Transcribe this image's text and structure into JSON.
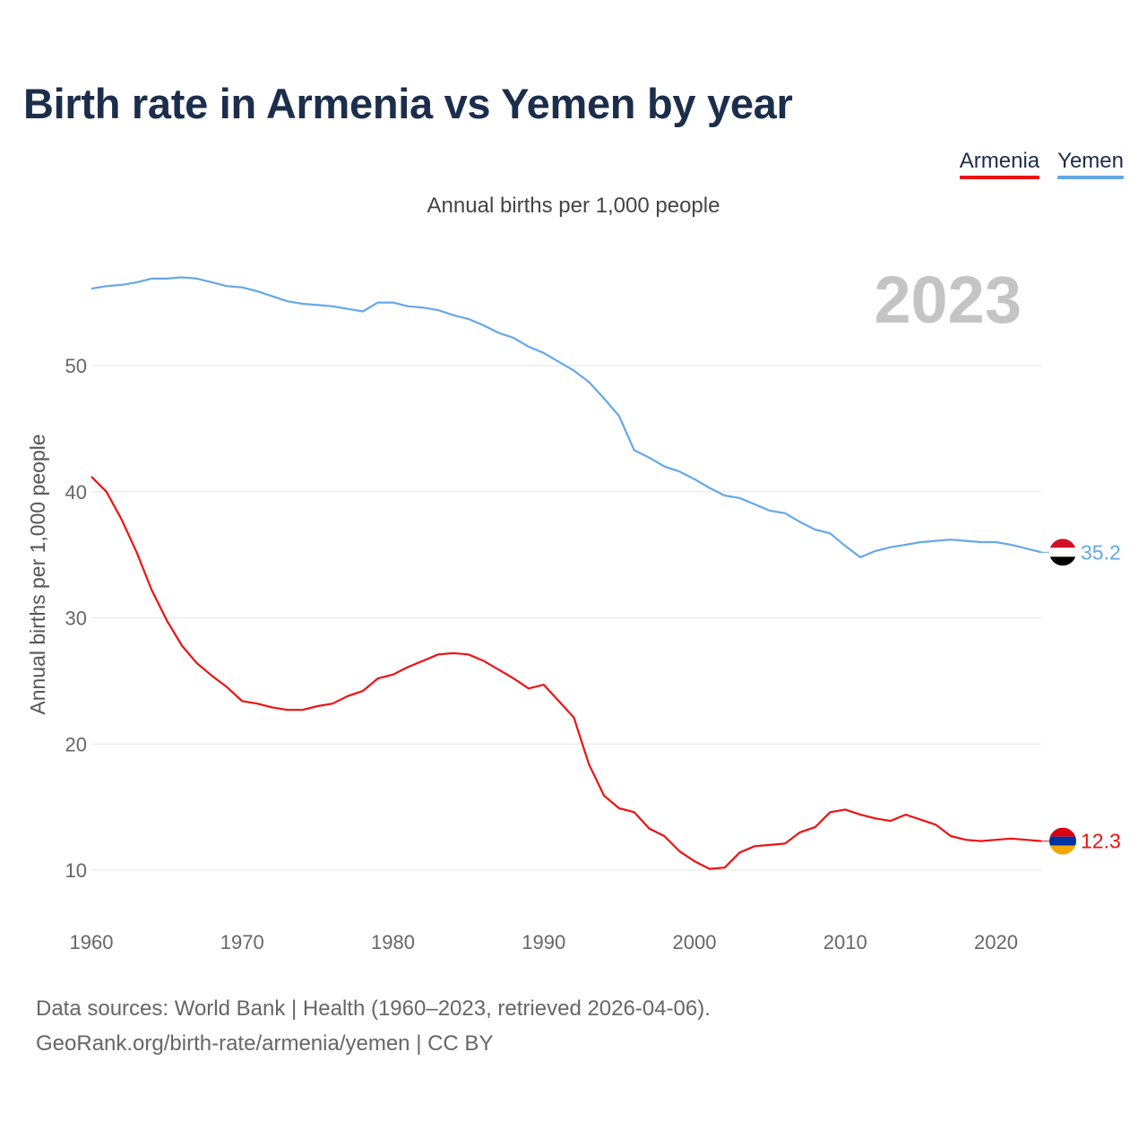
{
  "title": "Birth rate in Armenia vs Yemen by year",
  "subtitle": "Annual births per 1,000 people",
  "legend": [
    {
      "label": "Armenia",
      "color": "#ee1111"
    },
    {
      "label": "Yemen",
      "color": "#64a8e8"
    }
  ],
  "source": {
    "line1": "Data sources: World Bank | Health (1960–2023, retrieved 2026-04-06).",
    "line2": "GeoRank.org/birth-rate/armenia/yemen | CC BY"
  },
  "chart_data": {
    "type": "line",
    "title": "Birth rate in Armenia vs Yemen by year",
    "ylabel": "Annual births per 1,000 people",
    "xlabel": "",
    "current_year": "2023",
    "xlim": [
      1960,
      2023
    ],
    "ylim": [
      5,
      60
    ],
    "x_ticks": [
      1960,
      1970,
      1980,
      1990,
      2000,
      2010,
      2020
    ],
    "y_ticks": [
      10,
      20,
      30,
      40,
      50
    ],
    "grid": true,
    "legend_position": "top-right",
    "x": [
      1960,
      1961,
      1962,
      1963,
      1964,
      1965,
      1966,
      1967,
      1968,
      1969,
      1970,
      1971,
      1972,
      1973,
      1974,
      1975,
      1976,
      1977,
      1978,
      1979,
      1980,
      1981,
      1982,
      1983,
      1984,
      1985,
      1986,
      1987,
      1988,
      1989,
      1990,
      1991,
      1992,
      1993,
      1994,
      1995,
      1996,
      1997,
      1998,
      1999,
      2000,
      2001,
      2002,
      2003,
      2004,
      2005,
      2006,
      2007,
      2008,
      2009,
      2010,
      2011,
      2012,
      2013,
      2014,
      2015,
      2016,
      2017,
      2018,
      2019,
      2020,
      2021,
      2022,
      2023
    ],
    "series": [
      {
        "name": "Armenia",
        "color": "#ee1111",
        "end_label": "12.3",
        "values": [
          41.2,
          40.0,
          37.8,
          35.2,
          32.2,
          29.8,
          27.8,
          26.4,
          25.4,
          24.5,
          23.4,
          23.2,
          22.9,
          22.7,
          22.7,
          23.0,
          23.2,
          23.8,
          24.2,
          25.2,
          25.5,
          26.1,
          26.6,
          27.1,
          27.2,
          27.1,
          26.6,
          25.9,
          25.2,
          24.4,
          24.7,
          23.4,
          22.1,
          18.4,
          15.9,
          14.9,
          14.6,
          13.3,
          12.7,
          11.5,
          10.7,
          10.1,
          10.2,
          11.4,
          11.9,
          12.0,
          12.1,
          13.0,
          13.4,
          14.6,
          14.8,
          14.4,
          14.1,
          13.9,
          14.4,
          14.0,
          13.6,
          12.7,
          12.4,
          12.3,
          12.4,
          12.5,
          12.4,
          12.3
        ]
      },
      {
        "name": "Yemen",
        "color": "#64a8e8",
        "end_label": "35.2",
        "values": [
          56.1,
          56.3,
          56.4,
          56.6,
          56.9,
          56.9,
          57.0,
          56.9,
          56.6,
          56.3,
          56.2,
          55.9,
          55.5,
          55.1,
          54.9,
          54.8,
          54.7,
          54.5,
          54.3,
          55.0,
          55.0,
          54.7,
          54.6,
          54.4,
          54.0,
          53.7,
          53.2,
          52.6,
          52.2,
          51.5,
          51.0,
          50.3,
          49.6,
          48.7,
          47.4,
          46.0,
          43.3,
          42.7,
          42.0,
          41.6,
          41.0,
          40.3,
          39.7,
          39.5,
          39.0,
          38.5,
          38.3,
          37.6,
          37.0,
          36.7,
          35.7,
          34.8,
          35.3,
          35.6,
          35.8,
          36.0,
          36.1,
          36.2,
          36.1,
          36.0,
          36.0,
          35.8,
          35.5,
          35.2
        ]
      }
    ]
  }
}
